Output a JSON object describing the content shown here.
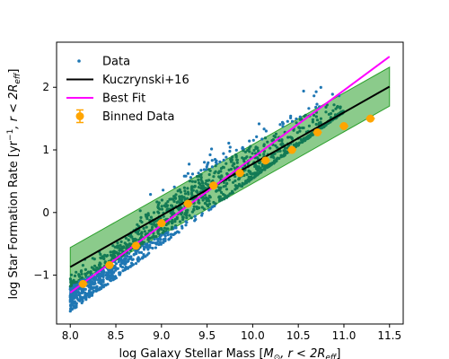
{
  "chart_data": {
    "type": "scatter",
    "xlabel_main": "log Galaxy Stellar Mass [",
    "xlabel_math": "M",
    "xlabel_sub1": "⊙",
    "xlabel_mid": ", r < 2R",
    "xlabel_sub2": "eff",
    "xlabel_end": "]",
    "ylabel_main": "log Star Formation Rate [yr",
    "ylabel_sup": "−1",
    "ylabel_mid": ", r < 2R",
    "ylabel_sub": "eff",
    "ylabel_end": "]",
    "xlim": [
      7.85,
      11.65
    ],
    "ylim": [
      -1.78,
      2.72
    ],
    "xticks": [
      8.0,
      8.5,
      9.0,
      9.5,
      10.0,
      10.5,
      11.0,
      11.5
    ],
    "xtick_labels": [
      "8.0",
      "8.5",
      "9.0",
      "9.5",
      "10.0",
      "10.5",
      "11.0",
      "11.5"
    ],
    "yticks": [
      -1,
      0,
      1,
      2
    ],
    "ytick_labels": [
      "−1",
      "0",
      "1",
      "2"
    ],
    "legend_position": "upper-left",
    "legend": [
      {
        "label": "Data",
        "kind": "scatter",
        "color": "#1f77b4"
      },
      {
        "label": "Kuczrynski+16",
        "kind": "line",
        "color": "#000000"
      },
      {
        "label": "Best Fit",
        "kind": "line",
        "color": "#ff00ff"
      },
      {
        "label": "Binned Data",
        "kind": "errorbar",
        "color": "#ffa500"
      }
    ],
    "reference_line": {
      "name": "Kuczrynski+16",
      "x": [
        8.0,
        11.5
      ],
      "y": [
        -0.87,
        2.01
      ],
      "color": "#000000"
    },
    "reference_band": {
      "x": [
        8.0,
        11.5
      ],
      "upper": [
        -0.56,
        2.32
      ],
      "lower": [
        -1.18,
        1.7
      ],
      "color": "#2ca02c"
    },
    "best_fit": {
      "name": "Best Fit",
      "x": [
        8.0,
        11.5
      ],
      "y": [
        -1.28,
        2.49
      ],
      "color": "#ff00ff"
    },
    "binned": {
      "name": "Binned Data",
      "color": "#ffa500",
      "x": [
        8.14,
        8.43,
        8.72,
        9.0,
        9.29,
        9.57,
        9.86,
        10.14,
        10.43,
        10.71,
        11.0,
        11.29
      ],
      "y": [
        -1.14,
        -0.84,
        -0.53,
        -0.17,
        0.14,
        0.43,
        0.63,
        0.83,
        1.0,
        1.28,
        1.38,
        1.5
      ]
    },
    "scatter": {
      "name": "Data",
      "color": "#1f77b4",
      "x_range": [
        8.0,
        11.0
      ],
      "trend": {
        "x": [
          8.0,
          8.5,
          9.0,
          9.5,
          10.0,
          10.5,
          11.0
        ],
        "y": [
          -1.32,
          -0.8,
          -0.17,
          0.42,
          0.78,
          1.08,
          1.37
        ]
      }
    }
  }
}
